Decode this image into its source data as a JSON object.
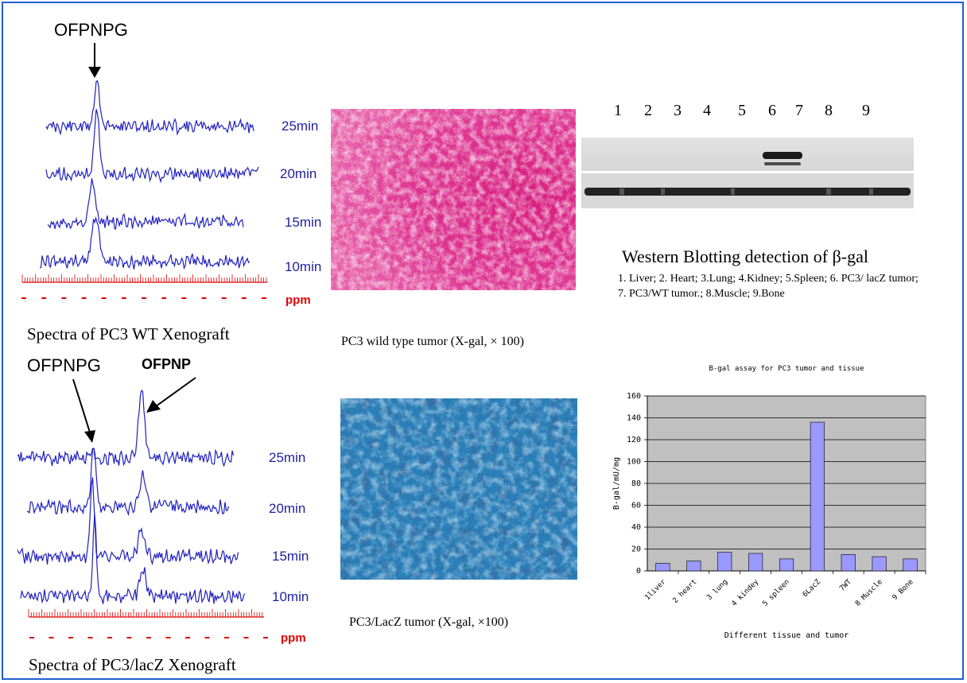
{
  "top_spectra": {
    "peak_label": "OFPNPG",
    "times": [
      "25min",
      "20min",
      "15min",
      "10min"
    ],
    "ppm_label": "ppm",
    "caption": "Spectra of  PC3 WT Xenograft"
  },
  "bottom_spectra": {
    "peak_label_1": "OFPNPG",
    "peak_label_2": "OFPNP",
    "times": [
      "25min",
      "20min",
      "15min",
      "10min"
    ],
    "ppm_label": "ppm",
    "caption": "Spectra of  PC3/lacZ Xenograft"
  },
  "histology": {
    "wt_caption": "PC3 wild type tumor (X-gal, × 100)",
    "lacz_caption": "PC3/LacZ tumor (X-gal, ×100)"
  },
  "western": {
    "lanes": [
      "1",
      "2",
      "3",
      "4",
      "5",
      "6",
      "7",
      "8",
      "9"
    ],
    "title": "Western Blotting detection of β-gal",
    "legend": "1. Liver; 2. Heart; 3.Lung; 4.Kidney; 5.Spleen; 6. PC3/ lacZ tumor; 7. PC3/WT tumor.; 8.Muscle; 9.Bone"
  },
  "chart_data": {
    "type": "bar",
    "title": "B-gal assay for PC3 tumor and tissue",
    "xlabel": "Different tissue and tumor",
    "ylabel": "B-gal/mU/mg",
    "categories": [
      "1liver",
      "2 heart",
      "3 lung",
      "4 kindey",
      "5 spleen",
      "6LacZ",
      "7WT",
      "8 Muscle",
      "9 Bone"
    ],
    "values": [
      7,
      9,
      17,
      16,
      11,
      136,
      15,
      13,
      11
    ],
    "ylim": [
      0,
      160
    ],
    "yticks": [
      "0",
      "20",
      "40",
      "60",
      "80",
      "100",
      "120",
      "140",
      "160"
    ],
    "grid": true,
    "bar_color": "#9999ff",
    "plot_bg": "#c0c0c0"
  }
}
